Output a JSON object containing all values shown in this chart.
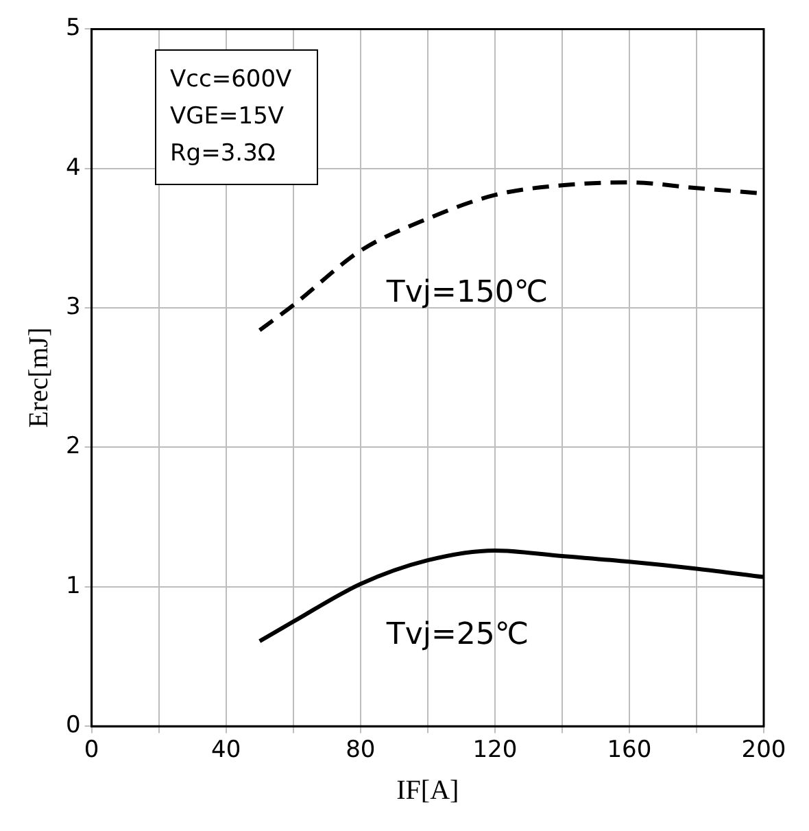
{
  "chart_data": {
    "type": "line",
    "xlabel": "IF[A]",
    "ylabel": "Erec[mJ]",
    "annotations": [
      "Vcc=600V",
      "VGE=15V",
      "Rg=3.3Ω"
    ],
    "xlim": [
      0,
      200
    ],
    "xticks": [
      0,
      {
        "value": 20,
        "label": null
      },
      40,
      {
        "value": 60,
        "label": null
      },
      80,
      {
        "value": 100,
        "label": null
      },
      120,
      {
        "value": 140,
        "label": null
      },
      160,
      {
        "value": 180,
        "label": null
      },
      200
    ],
    "ylim": [
      0,
      5
    ],
    "yticks": [
      0,
      1,
      2,
      3,
      4,
      5
    ],
    "grid": true,
    "legend": false,
    "marker": "none",
    "series": [
      {
        "name": "Tvj=150℃",
        "color": "#000000",
        "line_style": "dashed",
        "x": [
          50,
          60,
          80,
          100,
          120,
          140,
          160,
          180,
          200
        ],
        "values": [
          2.84,
          3.02,
          3.41,
          3.64,
          3.81,
          3.88,
          3.9,
          3.86,
          3.82
        ]
      },
      {
        "name": "Tvj=25℃",
        "color": "#000000",
        "line_style": "solid",
        "x": [
          50,
          60,
          80,
          100,
          120,
          140,
          160,
          180,
          200
        ],
        "values": [
          0.61,
          0.75,
          1.02,
          1.19,
          1.26,
          1.22,
          1.18,
          1.13,
          1.07
        ]
      }
    ]
  }
}
